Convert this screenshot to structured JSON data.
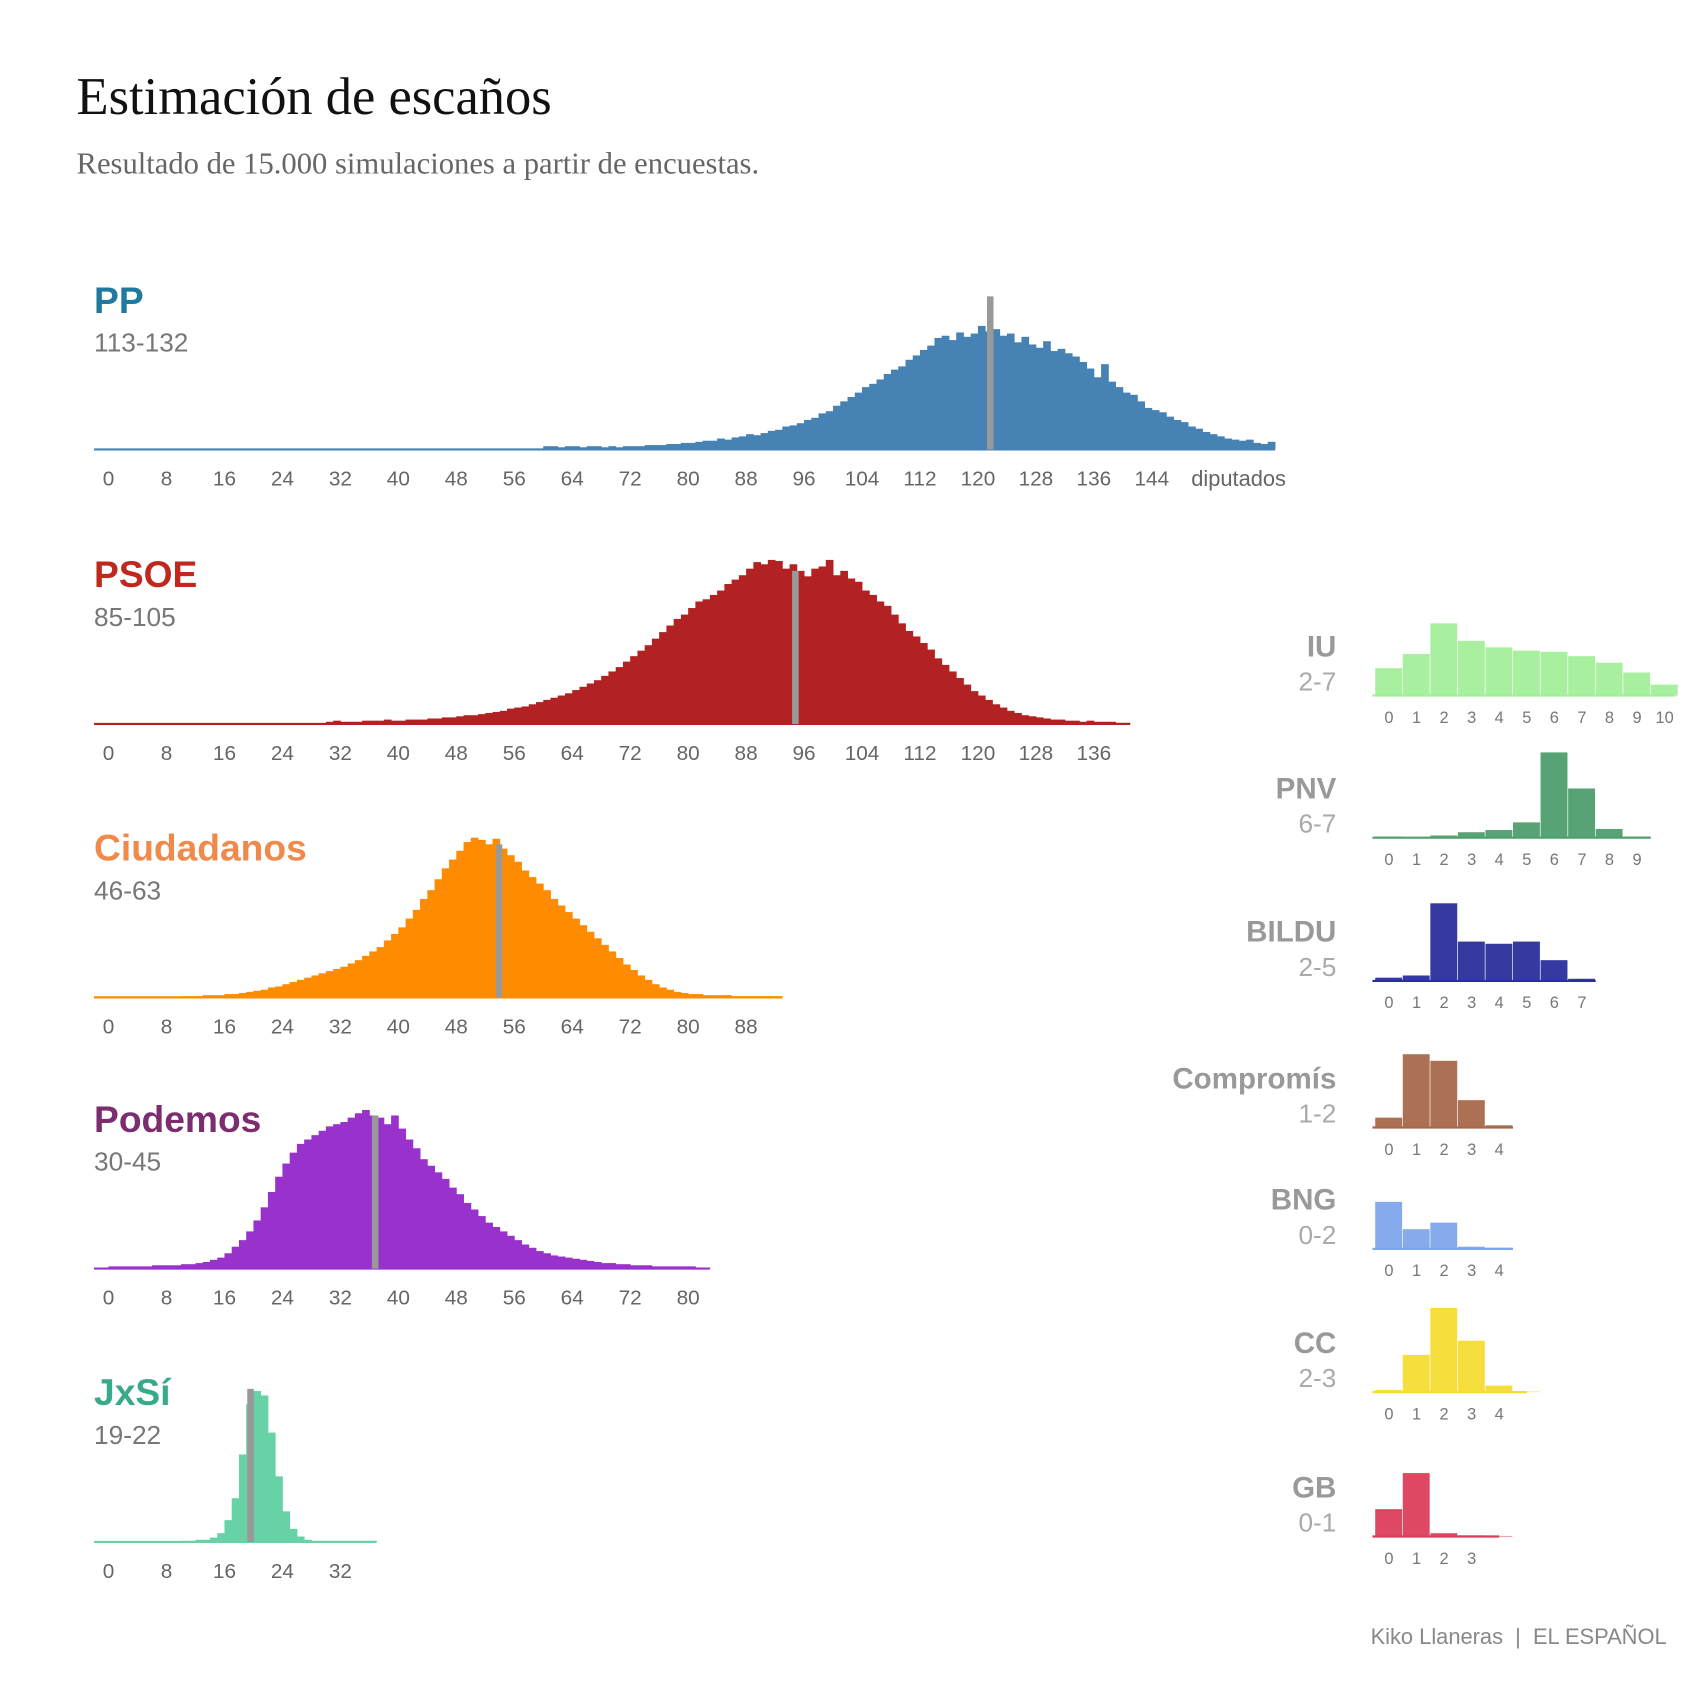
{
  "header": {
    "title": "Estimación de escaños",
    "subtitle": "Resultado de 15.000 simulaciones a partir de encuestas.",
    "source": "Kiko Llaneras  |  EL ESPAÑOL"
  },
  "chart_data": [
    {
      "type": "bar",
      "title": "PP",
      "subtitle": "113-132",
      "color": "#4682b4",
      "title_color": "#1f7a9e",
      "xlabel": "diputados",
      "marker": 121.7,
      "xlim": [
        -2,
        161
      ],
      "ylim": [
        0,
        150
      ],
      "xticks": [
        0,
        8,
        16,
        24,
        32,
        40,
        48,
        56,
        64,
        72,
        80,
        88,
        96,
        104,
        112,
        120,
        128,
        136,
        144
      ],
      "x": [
        60,
        61,
        62,
        63,
        64,
        65,
        66,
        67,
        68,
        69,
        70,
        71,
        72,
        73,
        74,
        75,
        76,
        77,
        78,
        79,
        80,
        81,
        82,
        83,
        84,
        85,
        86,
        87,
        88,
        89,
        90,
        91,
        92,
        93,
        94,
        95,
        96,
        97,
        98,
        99,
        100,
        101,
        102,
        103,
        104,
        105,
        106,
        107,
        108,
        109,
        110,
        111,
        112,
        113,
        114,
        115,
        116,
        117,
        118,
        119,
        120,
        121,
        122,
        123,
        124,
        125,
        126,
        127,
        128,
        129,
        130,
        131,
        132,
        133,
        134,
        135,
        136,
        137,
        138,
        139,
        140,
        141,
        142,
        143,
        144,
        145,
        146,
        147,
        148,
        149,
        150,
        151,
        152,
        153,
        154,
        155,
        156,
        157,
        158,
        159,
        160
      ],
      "values": [
        3,
        3,
        2,
        3,
        3,
        2,
        3,
        3,
        2,
        3,
        2,
        3,
        3,
        3,
        4,
        4,
        4,
        5,
        5,
        6,
        6,
        7,
        8,
        8,
        10,
        9,
        11,
        12,
        14,
        13,
        15,
        17,
        18,
        21,
        22,
        24,
        27,
        29,
        33,
        35,
        40,
        44,
        48,
        52,
        57,
        60,
        64,
        69,
        73,
        76,
        82,
        86,
        91,
        95,
        102,
        104,
        100,
        107,
        103,
        106,
        113,
        108,
        110,
        104,
        106,
        98,
        103,
        96,
        93,
        99,
        90,
        92,
        88,
        85,
        80,
        74,
        66,
        78,
        62,
        57,
        52,
        50,
        44,
        38,
        36,
        34,
        30,
        27,
        25,
        21,
        19,
        16,
        14,
        12,
        10,
        9,
        8,
        9,
        6,
        5,
        7
      ]
    },
    {
      "type": "bar",
      "title": "PSOE",
      "subtitle": "85-105",
      "color": "#b22222",
      "title_color": "#c0281f",
      "marker": 94.8,
      "xlim": [
        -2,
        141
      ],
      "ylim": [
        0,
        150
      ],
      "xticks": [
        0,
        8,
        16,
        24,
        32,
        40,
        48,
        56,
        64,
        72,
        80,
        88,
        96,
        104,
        112,
        120,
        128,
        136
      ],
      "x": [
        30,
        31,
        32,
        33,
        34,
        35,
        36,
        37,
        38,
        39,
        40,
        41,
        42,
        43,
        44,
        45,
        46,
        47,
        48,
        49,
        50,
        51,
        52,
        53,
        54,
        55,
        56,
        57,
        58,
        59,
        60,
        61,
        62,
        63,
        64,
        65,
        66,
        67,
        68,
        69,
        70,
        71,
        72,
        73,
        74,
        75,
        76,
        77,
        78,
        79,
        80,
        81,
        82,
        83,
        84,
        85,
        86,
        87,
        88,
        89,
        90,
        91,
        92,
        93,
        94,
        95,
        96,
        97,
        98,
        99,
        100,
        101,
        102,
        103,
        104,
        105,
        106,
        107,
        108,
        109,
        110,
        111,
        112,
        113,
        114,
        115,
        116,
        117,
        118,
        119,
        120,
        121,
        122,
        123,
        124,
        125,
        126,
        127,
        128,
        129,
        130,
        131,
        132,
        133,
        134,
        135,
        136,
        137,
        138,
        139,
        140
      ],
      "values": [
        2,
        3,
        2,
        2,
        2,
        3,
        3,
        3,
        4,
        3,
        3,
        4,
        4,
        4,
        5,
        5,
        6,
        6,
        7,
        8,
        8,
        9,
        10,
        11,
        12,
        14,
        15,
        16,
        18,
        20,
        22,
        24,
        26,
        28,
        31,
        34,
        37,
        40,
        44,
        48,
        52,
        57,
        62,
        67,
        72,
        78,
        84,
        90,
        96,
        100,
        106,
        112,
        114,
        118,
        122,
        128,
        132,
        136,
        142,
        148,
        146,
        150,
        149,
        142,
        146,
        140,
        135,
        142,
        144,
        150,
        136,
        140,
        133,
        130,
        122,
        118,
        112,
        108,
        100,
        92,
        85,
        80,
        74,
        68,
        60,
        54,
        48,
        42,
        36,
        30,
        26,
        22,
        18,
        15,
        12,
        10,
        8,
        7,
        6,
        5,
        4,
        4,
        3,
        3,
        2,
        3,
        2,
        2,
        2,
        1,
        1
      ]
    },
    {
      "type": "bar",
      "title": "Ciudadanos",
      "subtitle": "46-63",
      "color": "#ff8c00",
      "title_color": "#f08a4b",
      "marker": 53.9,
      "xlim": [
        -2,
        93
      ],
      "ylim": [
        0,
        150
      ],
      "xticks": [
        0,
        8,
        16,
        24,
        32,
        40,
        48,
        56,
        64,
        72,
        80,
        88
      ],
      "x": [
        10,
        11,
        12,
        13,
        14,
        15,
        16,
        17,
        18,
        19,
        20,
        21,
        22,
        23,
        24,
        25,
        26,
        27,
        28,
        29,
        30,
        31,
        32,
        33,
        34,
        35,
        36,
        37,
        38,
        39,
        40,
        41,
        42,
        43,
        44,
        45,
        46,
        47,
        48,
        49,
        50,
        51,
        52,
        53,
        54,
        55,
        56,
        57,
        58,
        59,
        60,
        61,
        62,
        63,
        64,
        65,
        66,
        67,
        68,
        69,
        70,
        71,
        72,
        73,
        74,
        75,
        76,
        77,
        78,
        79,
        80,
        81,
        82,
        83,
        84,
        85,
        86,
        87,
        88,
        89,
        90,
        91,
        92
      ],
      "values": [
        1,
        1,
        1,
        2,
        2,
        2,
        3,
        3,
        4,
        5,
        6,
        7,
        9,
        10,
        12,
        14,
        16,
        18,
        20,
        22,
        24,
        26,
        28,
        31,
        34,
        38,
        42,
        46,
        52,
        58,
        64,
        72,
        80,
        90,
        98,
        108,
        118,
        126,
        134,
        142,
        146,
        144,
        140,
        145,
        136,
        130,
        124,
        116,
        110,
        104,
        98,
        90,
        84,
        78,
        72,
        66,
        60,
        54,
        48,
        42,
        36,
        30,
        25,
        20,
        16,
        12,
        9,
        7,
        5,
        4,
        3,
        3,
        2,
        2,
        2,
        2,
        1,
        1,
        1,
        1,
        1,
        1,
        1
      ]
    },
    {
      "type": "bar",
      "title": "Podemos",
      "subtitle": "30-45",
      "color": "#9932cc",
      "title_color": "#7b2d6f",
      "marker": 36.8,
      "xlim": [
        -2,
        83
      ],
      "ylim": [
        0,
        150
      ],
      "xticks": [
        0,
        8,
        16,
        24,
        32,
        40,
        48,
        56,
        64,
        72,
        80
      ],
      "x": [
        0,
        1,
        2,
        3,
        4,
        5,
        6,
        7,
        8,
        9,
        10,
        11,
        12,
        13,
        14,
        15,
        16,
        17,
        18,
        19,
        20,
        21,
        22,
        23,
        24,
        25,
        26,
        27,
        28,
        29,
        30,
        31,
        32,
        33,
        34,
        35,
        36,
        37,
        38,
        39,
        40,
        41,
        42,
        43,
        44,
        45,
        46,
        47,
        48,
        49,
        50,
        51,
        52,
        53,
        54,
        55,
        56,
        57,
        58,
        59,
        60,
        61,
        62,
        63,
        64,
        65,
        66,
        67,
        68,
        69,
        70,
        71,
        72,
        73,
        74,
        75,
        76,
        77,
        78,
        79,
        80,
        81,
        82
      ],
      "values": [
        2,
        2,
        2,
        2,
        2,
        2,
        3,
        3,
        3,
        3,
        4,
        4,
        5,
        6,
        8,
        10,
        14,
        20,
        26,
        34,
        44,
        56,
        70,
        84,
        96,
        106,
        114,
        118,
        122,
        126,
        130,
        132,
        134,
        138,
        142,
        145,
        140,
        138,
        132,
        140,
        128,
        118,
        110,
        100,
        94,
        88,
        82,
        74,
        68,
        60,
        54,
        48,
        42,
        38,
        34,
        30,
        26,
        22,
        19,
        16,
        14,
        12,
        11,
        10,
        9,
        8,
        7,
        6,
        5,
        5,
        4,
        4,
        3,
        3,
        3,
        2,
        2,
        2,
        2,
        2,
        2,
        1,
        1
      ]
    },
    {
      "type": "bar",
      "title": "JxSí",
      "subtitle": "19-22",
      "color": "#66d2a6",
      "title_color": "#39a98c",
      "marker": 19.6,
      "xlim": [
        -2,
        37
      ],
      "ylim": [
        0,
        150
      ],
      "xticks": [
        0,
        8,
        16,
        24,
        32
      ],
      "x": [
        10,
        11,
        12,
        13,
        14,
        15,
        16,
        17,
        18,
        19,
        20,
        21,
        22,
        23,
        24,
        25,
        26,
        27,
        28,
        29,
        30,
        31,
        32,
        33,
        34,
        35,
        36
      ],
      "values": [
        1,
        1,
        2,
        2,
        4,
        8,
        20,
        40,
        80,
        126,
        138,
        134,
        100,
        60,
        28,
        12,
        5,
        2,
        1,
        1,
        1,
        1,
        1,
        1,
        1,
        1,
        1
      ]
    },
    {
      "type": "bar",
      "title": "IU",
      "subtitle": "2-7",
      "color": "#a3ef9b",
      "xlim": [
        -0.6,
        10.4
      ],
      "ylim": [
        0,
        80
      ],
      "xticks": [
        0,
        1,
        2,
        3,
        4,
        5,
        6,
        7,
        8,
        9,
        10
      ],
      "x": [
        0,
        1,
        2,
        3,
        4,
        5,
        6,
        7,
        8,
        9,
        10
      ],
      "values": [
        25,
        38,
        66,
        50,
        44,
        41,
        40,
        36,
        30,
        21,
        10
      ]
    },
    {
      "type": "bar",
      "title": "PNV",
      "subtitle": "6-7",
      "color": "#4f9e6e",
      "xlim": [
        -0.6,
        9.5
      ],
      "ylim": [
        0,
        80
      ],
      "xticks": [
        0,
        1,
        2,
        3,
        4,
        5,
        6,
        7,
        8,
        9
      ],
      "x": [
        0,
        1,
        2,
        3,
        4,
        5,
        6,
        7,
        8,
        9
      ],
      "values": [
        1,
        0,
        2,
        5,
        7,
        14,
        78,
        45,
        8,
        1
      ]
    },
    {
      "type": "bar",
      "title": "BILDU",
      "subtitle": "2-5",
      "color": "#2b2f9b",
      "xlim": [
        -0.6,
        7.5
      ],
      "ylim": [
        0,
        80
      ],
      "xticks": [
        0,
        1,
        2,
        3,
        4,
        5,
        6,
        7
      ],
      "x": [
        0,
        1,
        2,
        3,
        4,
        5,
        6,
        7
      ],
      "values": [
        3,
        5,
        71,
        36,
        34,
        36,
        19,
        2
      ]
    },
    {
      "type": "bar",
      "title": "Compromís",
      "subtitle": "1-2",
      "color": "#a8694b",
      "xlim": [
        -0.6,
        4.5
      ],
      "ylim": [
        0,
        80
      ],
      "xticks": [
        0,
        1,
        2,
        3,
        4
      ],
      "x": [
        0,
        1,
        2,
        3,
        4
      ],
      "values": [
        9,
        67,
        61,
        25,
        2
      ]
    },
    {
      "type": "bar",
      "title": "BNG",
      "subtitle": "0-2",
      "color": "#7fa6ec",
      "xlim": [
        -0.6,
        4.5
      ],
      "ylim": [
        0,
        80
      ],
      "xticks": [
        0,
        1,
        2,
        3,
        4
      ],
      "x": [
        0,
        1,
        2,
        3,
        4
      ],
      "values": [
        43,
        18,
        24,
        2,
        1
      ]
    },
    {
      "type": "bar",
      "title": "CC",
      "subtitle": "2-3",
      "color": "#f6dc31",
      "xlim": [
        -0.6,
        5.0
      ],
      "ylim": [
        0,
        80
      ],
      "xticks": [
        0,
        1,
        2,
        3,
        4
      ],
      "x": [
        0,
        1,
        2,
        3,
        4,
        5
      ],
      "values": [
        2,
        34,
        77,
        47,
        6,
        0.5
      ]
    },
    {
      "type": "bar",
      "title": "GB",
      "subtitle": "0-1",
      "color": "#dc3e5a",
      "xlim": [
        -0.6,
        4.0
      ],
      "ylim": [
        0,
        80
      ],
      "xticks": [
        0,
        1,
        2,
        3
      ],
      "x": [
        0,
        1,
        2,
        3,
        4
      ],
      "values": [
        25,
        58,
        3,
        1,
        0.5
      ]
    }
  ]
}
